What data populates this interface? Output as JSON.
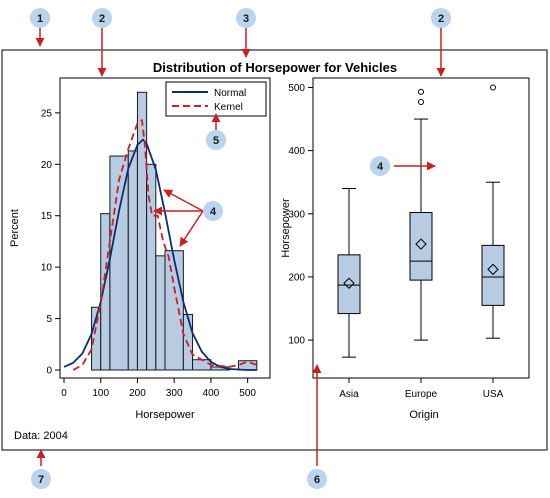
{
  "figure": {
    "title": "Distribution of Horsepower for Vehicles",
    "footnote": "Data: 2004",
    "colors": {
      "bar_fill": "#b7cbe3",
      "bar_stroke": "#1a1a1a",
      "normal_line": "#0b2d72",
      "kernel_line": "#cc1f1f",
      "callout_fill": "#b9d4ec",
      "callout_arrow": "#cc1f1f"
    }
  },
  "chart_data": [
    {
      "type": "bar",
      "subtype": "histogram",
      "xlabel": "Horsepower",
      "ylabel": "Percent",
      "xlim": [
        0,
        550
      ],
      "ylim": [
        0,
        28
      ],
      "x_ticks": [
        0,
        100,
        200,
        300,
        400,
        500
      ],
      "y_ticks": [
        0,
        5,
        10,
        15,
        20,
        25
      ],
      "bins": [
        {
          "start": 75,
          "end": 100,
          "value": 6.1
        },
        {
          "start": 100,
          "end": 125,
          "value": 15.2
        },
        {
          "start": 125,
          "end": 175,
          "value": 20.8
        },
        {
          "start": 175,
          "end": 200,
          "value": 21.3
        },
        {
          "start": 200,
          "end": 225,
          "value": 27.0
        },
        {
          "start": 225,
          "end": 250,
          "value": 20.0
        },
        {
          "start": 250,
          "end": 275,
          "value": 11.1
        },
        {
          "start": 275,
          "end": 325,
          "value": 11.6
        },
        {
          "start": 325,
          "end": 350,
          "value": 5.4
        },
        {
          "start": 350,
          "end": 400,
          "value": 1.0
        },
        {
          "start": 400,
          "end": 450,
          "value": 0.3
        },
        {
          "start": 475,
          "end": 525,
          "value": 0.9
        }
      ],
      "series": [
        {
          "name": "Normal",
          "style": "solid",
          "x": [
            0,
            25,
            50,
            75,
            100,
            125,
            150,
            175,
            200,
            215,
            225,
            250,
            275,
            300,
            325,
            350,
            375,
            400,
            425,
            450,
            500,
            525
          ],
          "y": [
            0.3,
            0.7,
            1.6,
            3.5,
            6.6,
            10.8,
            15.5,
            19.6,
            21.9,
            22.4,
            22.0,
            19.5,
            15.3,
            10.7,
            6.6,
            3.6,
            1.8,
            0.8,
            0.3,
            0.1,
            0.0,
            0.0
          ]
        },
        {
          "name": "Kernel",
          "style": "dashed",
          "x": [
            25,
            50,
            75,
            100,
            125,
            150,
            175,
            200,
            212,
            220,
            230,
            240,
            255,
            270,
            285,
            300,
            325,
            350,
            400,
            450,
            475,
            500,
            525
          ],
          "y": [
            0.0,
            0.5,
            2.0,
            6.5,
            12.5,
            18.5,
            21.5,
            24.0,
            24.3,
            22.0,
            17.0,
            15.0,
            15.0,
            12.5,
            11.0,
            8.0,
            3.5,
            1.5,
            0.5,
            0.3,
            0.5,
            0.8,
            0.5
          ]
        }
      ],
      "legend": {
        "placement": "top-right",
        "entries": [
          "Normal",
          "Kernel"
        ]
      }
    },
    {
      "type": "boxplot",
      "xlabel": "Origin",
      "ylabel": "Horsepower",
      "ylim": [
        40,
        515
      ],
      "y_ticks": [
        100,
        200,
        300,
        400,
        500
      ],
      "categories": [
        "Asia",
        "Europe",
        "USA"
      ],
      "boxes": [
        {
          "category": "Asia",
          "min": 73,
          "q1": 142,
          "median": 187,
          "q3": 235,
          "max": 340,
          "mean": 190,
          "outliers": []
        },
        {
          "category": "Europe",
          "min": 100,
          "q1": 195,
          "median": 225,
          "q3": 302,
          "max": 450,
          "mean": 252,
          "outliers": [
            477,
            493
          ]
        },
        {
          "category": "USA",
          "min": 103,
          "q1": 155,
          "median": 200,
          "q3": 250,
          "max": 350,
          "mean": 212,
          "outliers": [
            500
          ]
        }
      ]
    }
  ],
  "callouts": [
    {
      "id": "callout-1",
      "label": "1"
    },
    {
      "id": "callout-2a",
      "label": "2"
    },
    {
      "id": "callout-3",
      "label": "3"
    },
    {
      "id": "callout-2b",
      "label": "2"
    },
    {
      "id": "callout-4a",
      "label": "4"
    },
    {
      "id": "callout-5",
      "label": "5"
    },
    {
      "id": "callout-4b",
      "label": "4"
    },
    {
      "id": "callout-6",
      "label": "6"
    },
    {
      "id": "callout-7",
      "label": "7"
    }
  ]
}
